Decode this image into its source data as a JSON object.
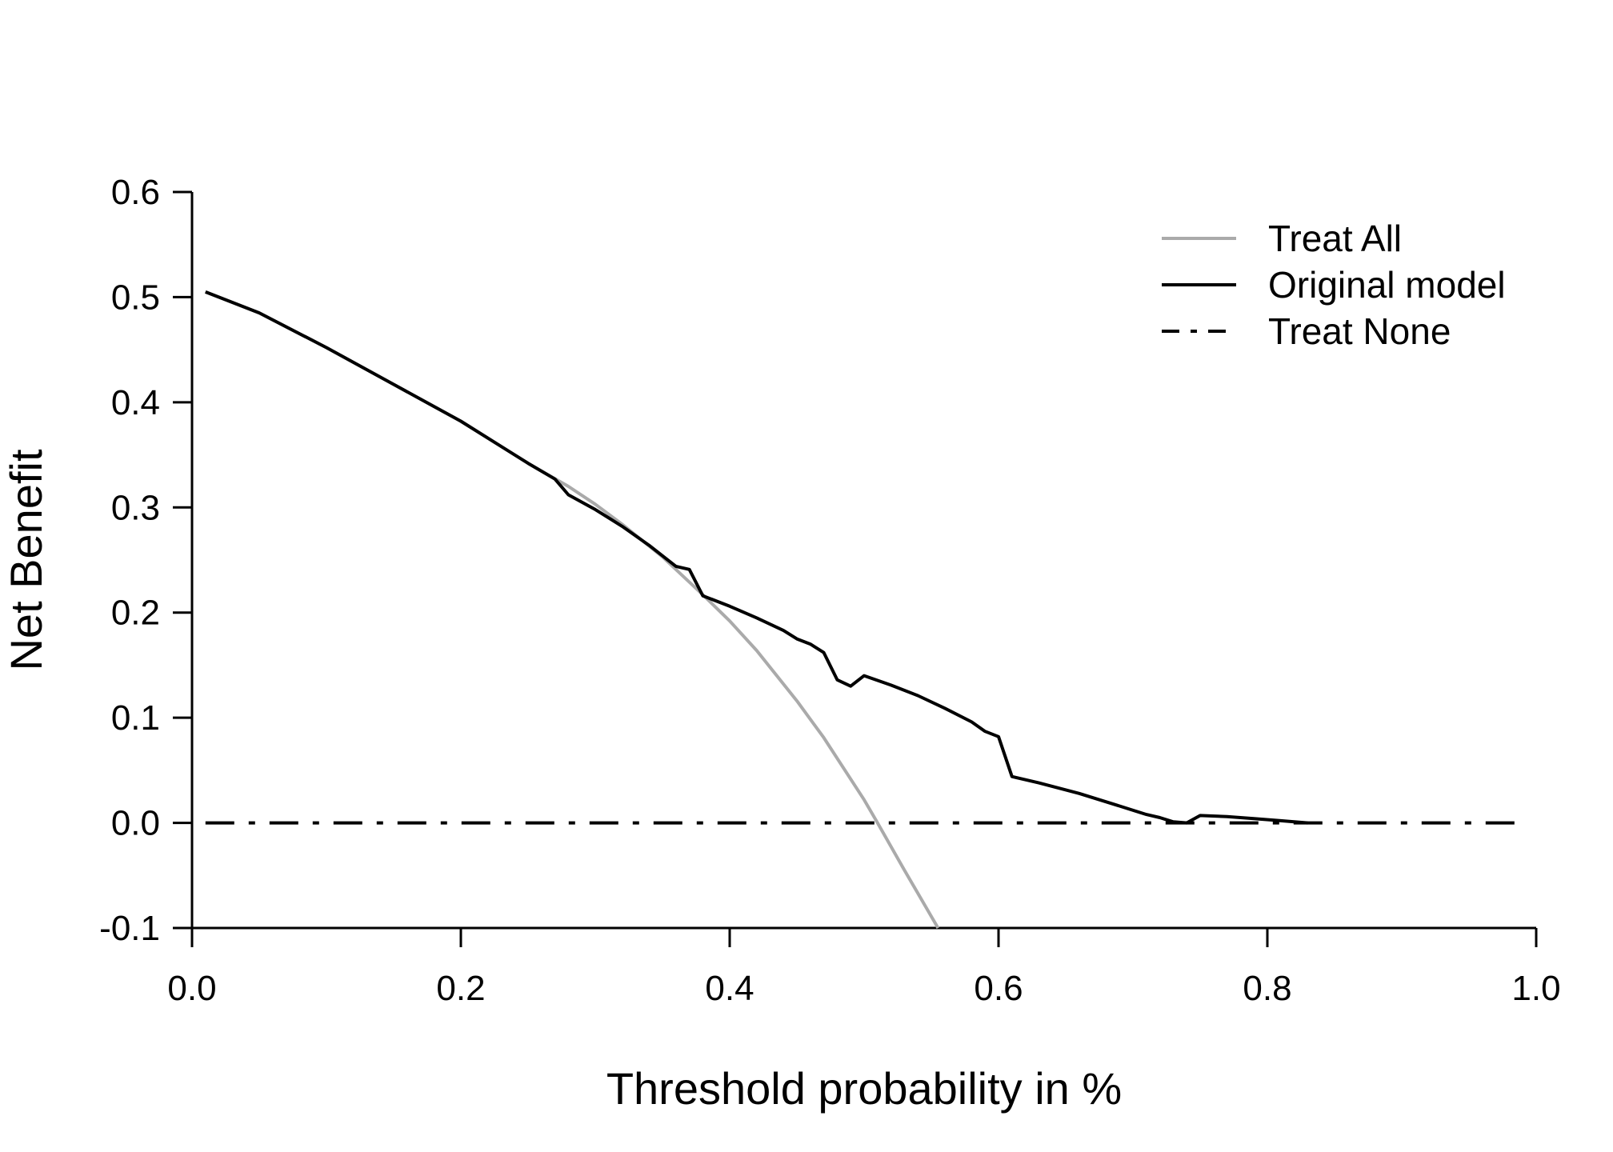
{
  "chart_data": {
    "type": "line",
    "title": "",
    "xlabel": "Threshold probability in %",
    "ylabel": "Net Benefit",
    "xlim": [
      0.0,
      1.0
    ],
    "ylim": [
      -0.1,
      0.6
    ],
    "x_ticks": [
      "0.0",
      "0.2",
      "0.4",
      "0.6",
      "0.8",
      "1.0"
    ],
    "y_ticks": [
      "-0.1",
      "0.0",
      "0.1",
      "0.2",
      "0.3",
      "0.4",
      "0.5",
      "0.6"
    ],
    "grid": false,
    "legend_position": "top-right",
    "series": [
      {
        "name": "Treat All",
        "color": "#aaaaaa",
        "dash": "solid",
        "x": [
          0.01,
          0.05,
          0.1,
          0.15,
          0.2,
          0.25,
          0.28,
          0.3,
          0.32,
          0.35,
          0.38,
          0.4,
          0.42,
          0.45,
          0.47,
          0.5,
          0.51,
          0.53,
          0.555
        ],
        "y": [
          0.505,
          0.485,
          0.452,
          0.417,
          0.382,
          0.342,
          0.32,
          0.303,
          0.284,
          0.253,
          0.217,
          0.192,
          0.164,
          0.116,
          0.081,
          0.022,
          0.0,
          -0.045,
          -0.1
        ]
      },
      {
        "name": "Original model",
        "color": "#000000",
        "dash": "solid",
        "x": [
          0.01,
          0.05,
          0.1,
          0.15,
          0.2,
          0.25,
          0.27,
          0.28,
          0.3,
          0.32,
          0.34,
          0.36,
          0.37,
          0.38,
          0.4,
          0.42,
          0.44,
          0.45,
          0.46,
          0.47,
          0.48,
          0.49,
          0.5,
          0.52,
          0.54,
          0.56,
          0.58,
          0.59,
          0.6,
          0.61,
          0.63,
          0.66,
          0.69,
          0.71,
          0.72,
          0.73,
          0.74,
          0.75,
          0.77,
          0.79,
          0.81,
          0.83
        ],
        "y": [
          0.505,
          0.485,
          0.452,
          0.417,
          0.382,
          0.342,
          0.327,
          0.312,
          0.298,
          0.282,
          0.264,
          0.244,
          0.241,
          0.216,
          0.206,
          0.195,
          0.183,
          0.175,
          0.17,
          0.162,
          0.136,
          0.13,
          0.14,
          0.131,
          0.121,
          0.109,
          0.096,
          0.087,
          0.082,
          0.044,
          0.038,
          0.028,
          0.016,
          0.008,
          0.005,
          0.001,
          0.0,
          0.007,
          0.006,
          0.004,
          0.002,
          0.0
        ]
      },
      {
        "name": "Treat None",
        "color": "#000000",
        "dash": "dashdot",
        "x": [
          0.01,
          0.99
        ],
        "y": [
          0.0,
          0.0
        ]
      }
    ]
  }
}
